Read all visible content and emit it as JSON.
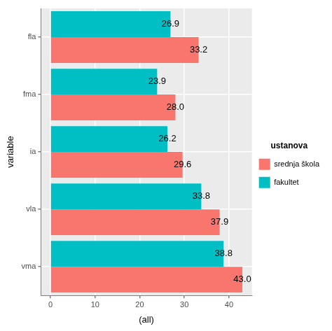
{
  "chart_data": {
    "type": "bar",
    "orientation": "horizontal",
    "x_label": "(all)",
    "y_label": "variable",
    "legend": "right",
    "legend_title": "ustanova",
    "categories": [
      "fla",
      "fma",
      "ia",
      "vla",
      "vma"
    ],
    "series": [
      {
        "name": "srednja škola",
        "color": "#F8766D",
        "values": [
          33.2,
          28.0,
          29.6,
          37.9,
          43.0
        ],
        "value_labels": [
          "33.2",
          "28.0",
          "29.6",
          "37.9",
          "43.0"
        ]
      },
      {
        "name": "fakultet",
        "color": "#00BFC4",
        "values": [
          26.9,
          23.9,
          26.2,
          33.8,
          38.8
        ],
        "value_labels": [
          "26.9",
          "23.9",
          "26.2",
          "33.8",
          "38.8"
        ]
      }
    ],
    "xlim": [
      -2.15,
      45.15
    ],
    "xticks": [
      0,
      10,
      20,
      30,
      40
    ],
    "grid": true,
    "data_labels": true
  }
}
